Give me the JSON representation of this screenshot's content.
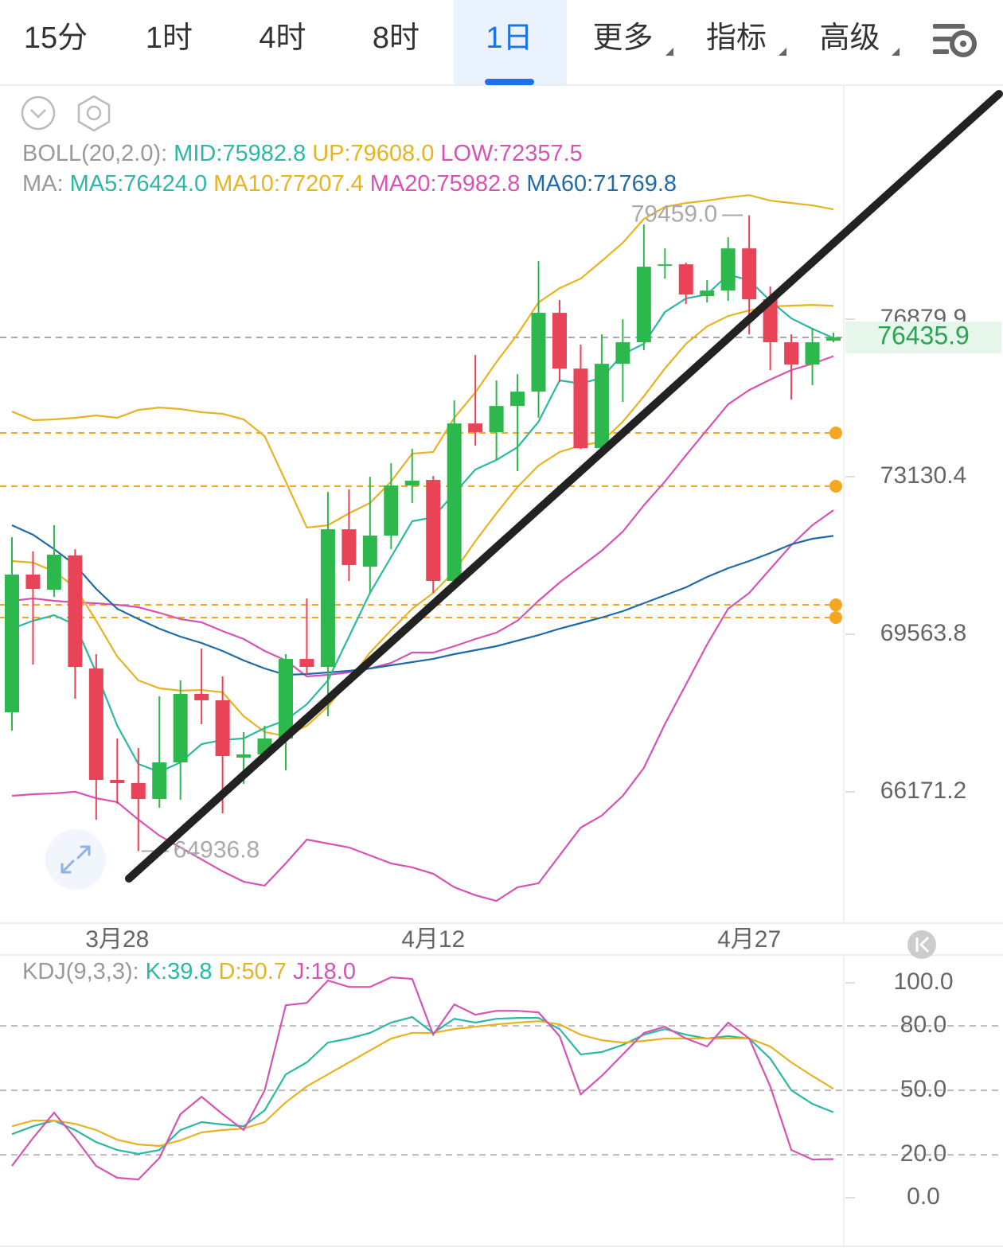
{
  "tabs": [
    "15分",
    "1时",
    "4时",
    "8时",
    "1日",
    "更多",
    "指标",
    "高级"
  ],
  "active_tab": 4,
  "chart_data": [
    {
      "type": "candlestick",
      "log_scale": true,
      "categories": [
        null,
        null,
        null,
        null,
        null,
        "3月28",
        null,
        null,
        null,
        null,
        null,
        null,
        null,
        null,
        null,
        null,
        null,
        null,
        null,
        null,
        "4月12",
        null,
        null,
        null,
        null,
        null,
        null,
        null,
        null,
        null,
        null,
        null,
        null,
        null,
        null,
        "4月27",
        null,
        null,
        null,
        null
      ],
      "open": [
        67864,
        70894,
        70555,
        71326,
        68812,
        66422,
        66355,
        66021,
        66792,
        68259,
        68122,
        66894,
        66961,
        67300,
        69021,
        68847,
        71921,
        71073,
        71777,
        72927,
        73057,
        70751,
        74378,
        74172,
        74792,
        75133,
        77036,
        75685,
        73798,
        75800,
        76319,
        78192,
        78231,
        77445,
        77582,
        78627,
        77367,
        76319,
        75781,
        76357
      ],
      "high": [
        71740,
        71415,
        72013,
        71469,
        69126,
        67300,
        67096,
        68207,
        68552,
        69248,
        68639,
        67436,
        67573,
        69126,
        70359,
        72780,
        72835,
        73130,
        73445,
        73783,
        73148,
        74925,
        76011,
        75399,
        75552,
        78310,
        77347,
        76261,
        76512,
        76880,
        79225,
        78627,
        78271,
        77838,
        78905,
        79459,
        77680,
        76512,
        76666,
        76551
      ],
      "low": [
        67470,
        68899,
        70394,
        68156,
        65589,
        65921,
        64936.8,
        65838,
        66005,
        67606,
        65722,
        66338,
        66927,
        66624,
        68673,
        67778,
        70751,
        70483,
        71469,
        72524,
        70483,
        70715,
        73854,
        73519,
        73260,
        74510,
        75361,
        73774,
        73783,
        74888,
        76126,
        77877,
        77250,
        77289,
        77328,
        76512,
        75647,
        74944,
        75285,
        76319
      ],
      "close": [
        70894,
        70573,
        71343,
        68847,
        66422,
        66355,
        66021,
        66792,
        68259,
        68122,
        66927,
        66961,
        67300,
        69021,
        68847,
        71921,
        71109,
        71777,
        72927,
        73039,
        70751,
        74378,
        74172,
        74792,
        75133,
        77036,
        75685,
        73798,
        75800,
        76319,
        78172,
        78231,
        77484,
        77582,
        78627,
        77367,
        76319,
        75781,
        76319,
        76435.9
      ],
      "up_color": "#2db84d",
      "down_color": "#e84357",
      "high_label": "79459.0",
      "series": [
        {
          "color": "#e8b321",
          "values": [
            74661,
            74455,
            74474,
            74511,
            74567,
            74511,
            74699,
            74755,
            74718,
            74643,
            74605,
            74474,
            74079,
            73020,
            71959,
            72014,
            72287,
            72525,
            73020,
            73669,
            73707,
            74511,
            75115,
            75840,
            76513,
            77290,
            77642,
            77877,
            78312,
            78767,
            79367,
            79668,
            79768,
            79828,
            79908,
            79968,
            79828,
            79768,
            79708,
            79608
          ]
        },
        {
          "color": "#d653b4",
          "values": [
            66088,
            66121,
            66138,
            66172,
            66038,
            65955,
            65590,
            65258,
            65013,
            64767,
            64522,
            64311,
            64230,
            64685,
            65176,
            65094,
            65013,
            64849,
            64685,
            64604,
            64473,
            64197,
            64036,
            63921,
            64197,
            64278,
            64849,
            65424,
            65673,
            66088,
            66675,
            67608,
            68467,
            69337,
            70129,
            70483,
            71021,
            71560,
            72014,
            72357.5
          ]
        },
        {
          "color": "#d653b4",
          "values": [
            70306,
            70359,
            70306,
            70270,
            70253,
            70217,
            70164,
            70041,
            69900,
            69829,
            69635,
            69459,
            69197,
            68988,
            68639,
            68674,
            68726,
            68813,
            68935,
            69162,
            69162,
            69302,
            69459,
            69599,
            69864,
            70306,
            70716,
            71074,
            71434,
            71868,
            72470,
            73020,
            73632,
            74229,
            74831,
            75172,
            75420,
            75649,
            75801,
            75982.8
          ]
        },
        {
          "color": "#1f6aa8",
          "values": [
            72014,
            71796,
            71470,
            71110,
            70573,
            70129,
            69900,
            69688,
            69511,
            69371,
            69197,
            68988,
            68813,
            68674,
            68691,
            68726,
            68761,
            68813,
            68883,
            68953,
            69023,
            69127,
            69214,
            69302,
            69424,
            69546,
            69688,
            69811,
            69935,
            70076,
            70253,
            70430,
            70609,
            70841,
            71039,
            71200,
            71380,
            71579,
            71706,
            71769.8
          ]
        },
        {
          "color": "#e8b321",
          "values": [
            71200,
            71164,
            70967,
            70609,
            69864,
            69075,
            68553,
            68381,
            68329,
            68346,
            68295,
            67778,
            67438,
            67353,
            67574,
            67985,
            68553,
            69162,
            69652,
            70129,
            70483,
            70967,
            71651,
            72287,
            72892,
            73391,
            73707,
            73855,
            73948,
            74417,
            75019,
            75687,
            76282,
            76706,
            76958,
            77095,
            77192,
            77212,
            77231,
            77207.4
          ]
        },
        {
          "color": "#2bb8a4",
          "values": [
            69688,
            69864,
            69988,
            69776,
            68726,
            67574,
            66759,
            66591,
            66793,
            67182,
            67268,
            67302,
            67523,
            67693,
            68036,
            68553,
            69511,
            70483,
            71289,
            72104,
            72195,
            72745,
            73298,
            73521,
            73818,
            74417,
            75401,
            75325,
            75458,
            76031,
            76282,
            77055,
            77388,
            77486,
            77976,
            77838,
            77330,
            76899,
            76648,
            76424
          ]
        }
      ],
      "legends": [
        [
          {
            "text": "BOLL(20,2.0):",
            "color": "#999999"
          },
          {
            "text": "MID:75982.8",
            "color": "#2bb8a4"
          },
          {
            "text": "UP:79608.0",
            "color": "#e8b321"
          },
          {
            "text": "LOW:72357.5",
            "color": "#d653b4"
          }
        ],
        [
          {
            "text": "MA:",
            "color": "#999999"
          },
          {
            "text": "MA5:76424.0",
            "color": "#2bb8a4"
          },
          {
            "text": "MA10:77207.4",
            "color": "#e8b321"
          },
          {
            "text": "MA20:75982.8",
            "color": "#d653b4"
          },
          {
            "text": "MA60:71769.8",
            "color": "#1f6aa8"
          }
        ]
      ],
      "alert_lines": [
        74154,
        72910,
        70217,
        69935
      ],
      "alert_color": "#f5a623",
      "ylim": [
        63470,
        82746
      ],
      "yticks": [
        76879.9,
        73130.4,
        69563.8,
        66171.2
      ]
    },
    {
      "type": "line",
      "series": [
        {
          "color": "#2bb8a4",
          "values": [
            29.6,
            33.3,
            35.9,
            31.5,
            25.9,
            22.2,
            20.4,
            22.2,
            31.5,
            35.2,
            34.1,
            33.3,
            40.7,
            57.4,
            63.0,
            72.2,
            74.1,
            76.7,
            81.5,
            84.1,
            76.7,
            83.3,
            81.5,
            83.3,
            83.7,
            83.7,
            78.5,
            66.7,
            67.8,
            71.1,
            75.9,
            78.5,
            75.9,
            74.1,
            75.2,
            74.1,
            64.8,
            50.0,
            43.7,
            39.8
          ]
        },
        {
          "color": "#e8b321",
          "values": [
            33.3,
            35.9,
            35.9,
            34.4,
            31.5,
            27.0,
            24.8,
            24.1,
            26.7,
            30.4,
            31.5,
            32.2,
            35.2,
            44.4,
            51.9,
            57.4,
            63.0,
            68.5,
            74.1,
            76.7,
            76.7,
            78.5,
            79.6,
            80.7,
            81.5,
            82.2,
            80.7,
            75.9,
            73.3,
            72.2,
            73.0,
            74.1,
            74.1,
            74.1,
            74.1,
            74.1,
            70.4,
            63.0,
            56.7,
            50.7
          ]
        },
        {
          "color": "#d653b4",
          "values": [
            14.8,
            27.8,
            39.6,
            27.8,
            14.8,
            9.3,
            8.5,
            18.5,
            38.9,
            47.0,
            38.9,
            31.5,
            50.0,
            89.6,
            90.7,
            101.1,
            98.1,
            98.1,
            102.6,
            101.9,
            75.9,
            90.0,
            85.2,
            87.0,
            87.0,
            86.3,
            75.2,
            48.1,
            56.7,
            66.7,
            76.7,
            79.6,
            74.1,
            70.4,
            81.5,
            74.1,
            51.9,
            22.2,
            17.8,
            18.0
          ]
        }
      ],
      "legend": [
        {
          "text": "KDJ(9,3,3):",
          "color": "#999999"
        },
        {
          "text": "K:39.8",
          "color": "#2bb8a4"
        },
        {
          "text": "D:50.7",
          "color": "#e8b321"
        },
        {
          "text": "J:18.0",
          "color": "#d653b4"
        }
      ],
      "ylim": [
        -22.2,
        113
      ],
      "yticks": [
        {
          "value": 100,
          "label": "100.0"
        },
        {
          "value": 80,
          "label": "80.0"
        },
        {
          "value": 50,
          "label": "50.0"
        },
        {
          "value": 20,
          "label": "20.0"
        },
        {
          "value": 0,
          "label": "0.0"
        }
      ],
      "grid": true
    }
  ]
}
